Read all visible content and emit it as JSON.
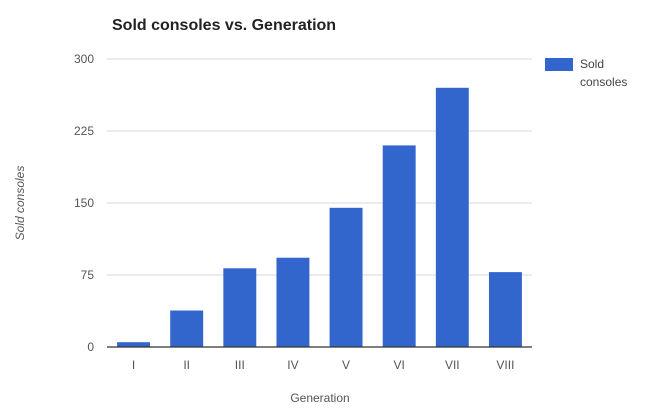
{
  "chart_data": {
    "type": "bar",
    "title": "Sold consoles vs. Generation",
    "xlabel": "Generation",
    "ylabel": "Sold consoles",
    "categories": [
      "I",
      "II",
      "III",
      "IV",
      "V",
      "VI",
      "VII",
      "VIII"
    ],
    "series": [
      {
        "name": "Sold\nconsoles",
        "values": [
          5,
          38,
          82,
          93,
          145,
          210,
          270,
          78
        ],
        "color": "#3366cc"
      }
    ],
    "ylim": [
      0,
      300
    ],
    "yticks": [
      "0",
      "75",
      "150",
      "225",
      "300"
    ],
    "grid": true,
    "legend_position": "right"
  }
}
